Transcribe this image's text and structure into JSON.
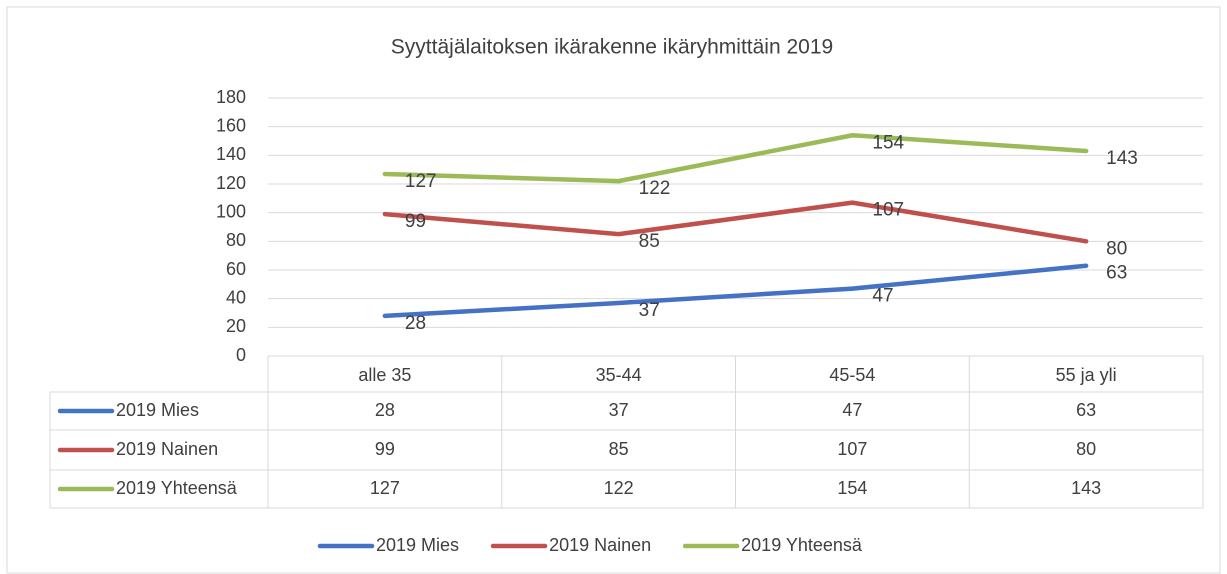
{
  "chart_data": {
    "type": "line",
    "title": "Syyttäjälaitoksen ikärakenne ikäryhmittäin 2019",
    "categories": [
      "alle 35",
      "35-44",
      "45-54",
      "55 ja yli"
    ],
    "series": [
      {
        "name": "2019 Mies",
        "color": "#4472c4",
        "values": [
          28,
          37,
          47,
          63
        ]
      },
      {
        "name": "2019 Nainen",
        "color": "#c0504d",
        "values": [
          99,
          85,
          107,
          80
        ]
      },
      {
        "name": "2019 Yhteensä",
        "color": "#9bbb59",
        "values": [
          127,
          122,
          154,
          143
        ]
      }
    ],
    "ylim": [
      0,
      180
    ],
    "yticks": [
      0,
      20,
      40,
      60,
      80,
      100,
      120,
      140,
      160,
      180
    ],
    "grid": true,
    "legend": "bottom",
    "data_table": true
  }
}
